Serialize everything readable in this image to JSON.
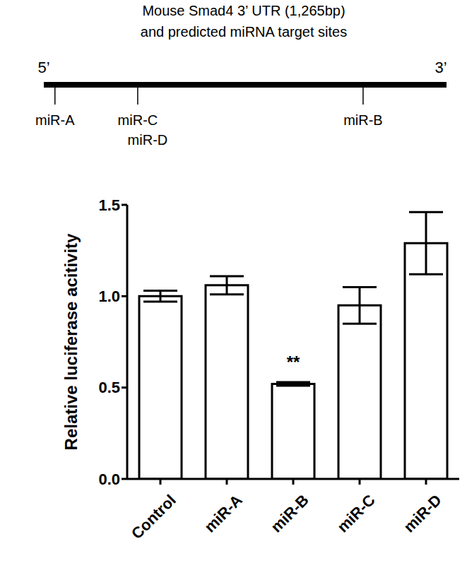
{
  "title": [
    "Mouse Smad4 3’ UTR (1,265bp)",
    "and predicted miRNA target sites"
  ],
  "diagram": {
    "end_left": "5’",
    "end_right": "3’",
    "utr_length": 1265,
    "sites": [
      {
        "label": "miR-A",
        "position": 35
      },
      {
        "label": "miR-C",
        "position": 295
      },
      {
        "label": "miR-D",
        "position": 295
      },
      {
        "label": "miR-B",
        "position": 1003
      }
    ]
  },
  "chart_data": {
    "type": "bar",
    "categories": [
      "Control",
      "miR-A",
      "miR-B",
      "miR-C",
      "miR-D"
    ],
    "values": [
      1.0,
      1.06,
      0.52,
      0.95,
      1.29
    ],
    "errors": [
      0.03,
      0.05,
      0.01,
      0.1,
      0.17
    ],
    "color": "#ffffff",
    "ylabel": "Relative luciferase acitivity",
    "ylim": [
      0,
      1.5
    ],
    "yticks": [
      {
        "value": 0,
        "label": "0.0"
      },
      {
        "value": 0.5,
        "label": "0.5"
      },
      {
        "value": 1,
        "label": "1.0"
      },
      {
        "value": 1.5,
        "label": "1.5"
      }
    ],
    "grid": false,
    "annotations": [
      {
        "category": "miR-B",
        "text": "**"
      }
    ]
  }
}
